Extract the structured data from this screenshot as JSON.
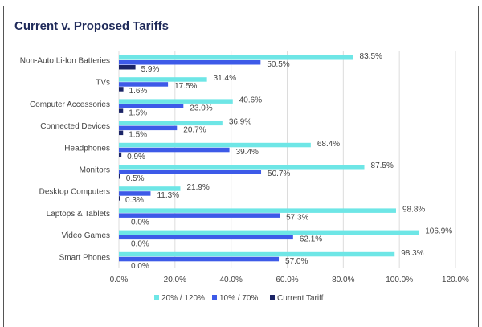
{
  "chart_data": {
    "type": "bar",
    "orientation": "horizontal",
    "title": "Current v. Proposed Tariffs",
    "categories": [
      "Non-Auto Li-Ion Batteries",
      "TVs",
      "Computer Accessories",
      "Connected Devices",
      "Headphones",
      "Monitors",
      "Desktop Computers",
      "Laptops & Tablets",
      "Video Games",
      "Smart Phones"
    ],
    "series": [
      {
        "name": "20% / 120%",
        "color": "#6ee6e6",
        "values": [
          83.5,
          31.4,
          40.6,
          36.9,
          68.4,
          87.5,
          21.9,
          98.8,
          106.9,
          98.3
        ]
      },
      {
        "name": "10% / 70%",
        "color": "#3d5ae8",
        "values": [
          50.5,
          17.5,
          23.0,
          20.7,
          39.4,
          50.7,
          11.3,
          57.3,
          62.1,
          57.0
        ]
      },
      {
        "name": "Current Tariff",
        "color": "#1b2466",
        "values": [
          5.9,
          1.6,
          1.5,
          1.5,
          0.9,
          0.5,
          0.3,
          0.0,
          0.0,
          0.0
        ]
      }
    ],
    "xlim": [
      0,
      120
    ],
    "xticks": [
      "0.0%",
      "20.0%",
      "40.0%",
      "60.0%",
      "80.0%",
      "100.0%",
      "120.0%"
    ],
    "grid": true,
    "legend": "bottom"
  }
}
